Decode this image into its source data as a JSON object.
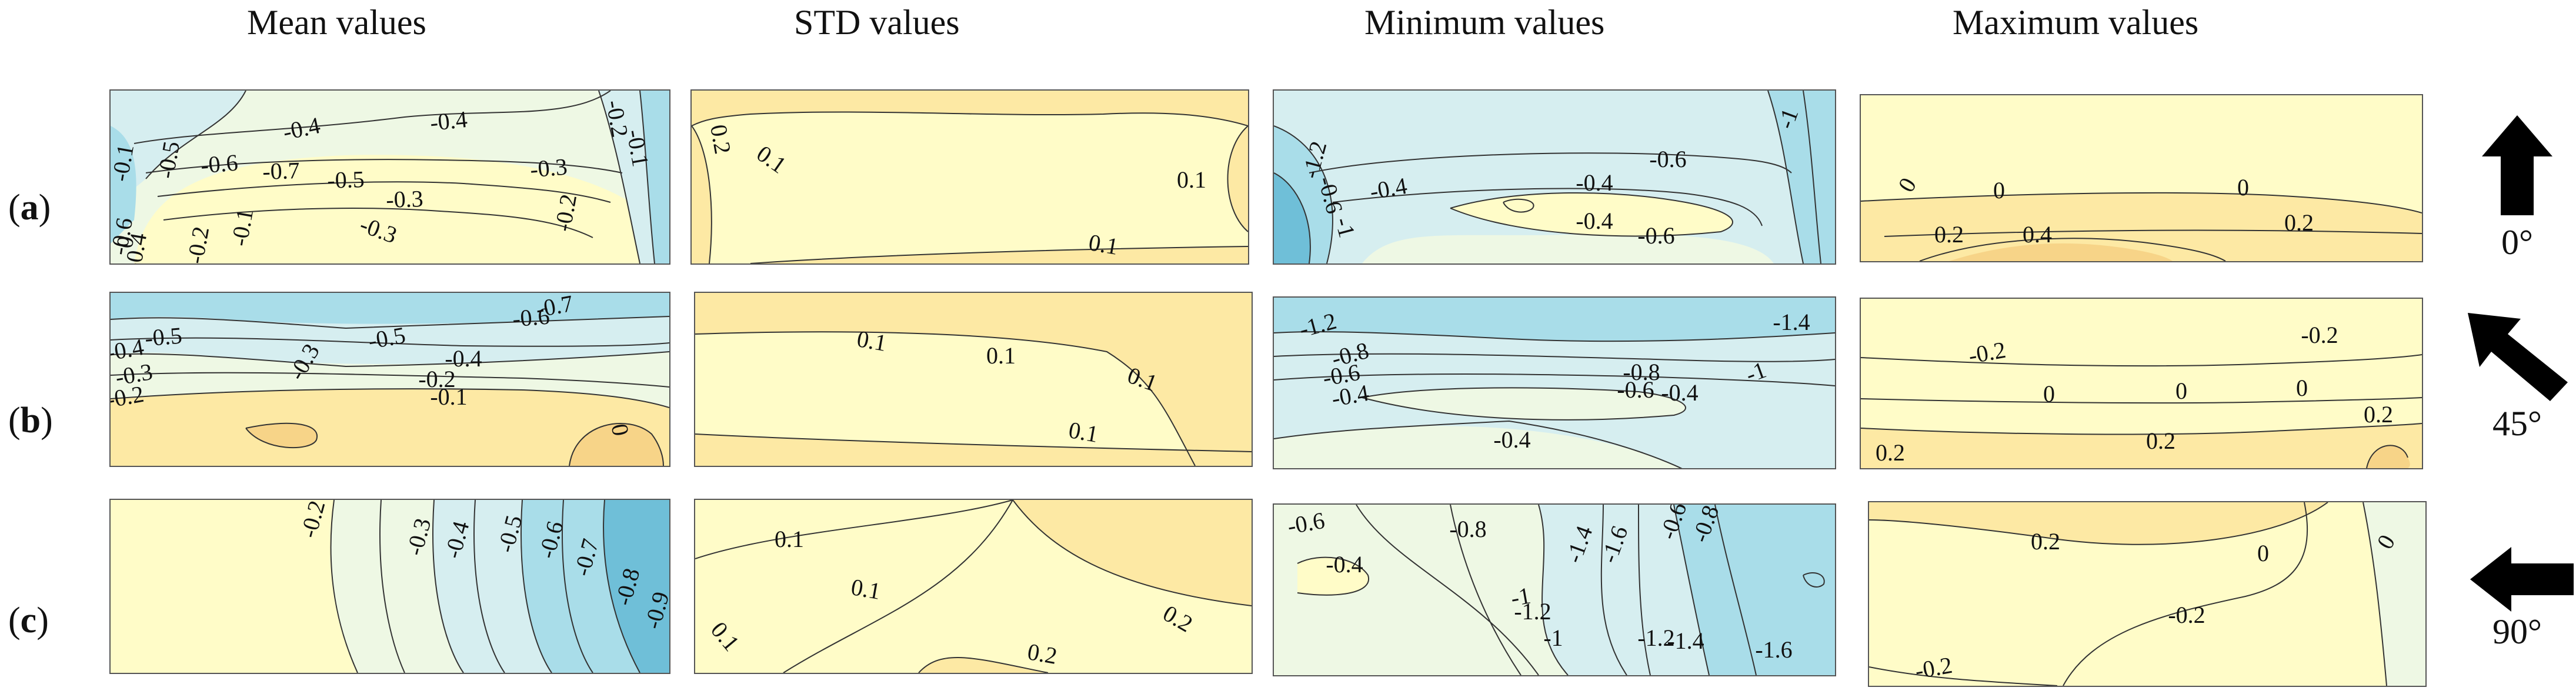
{
  "columns": [
    "Mean values",
    "STD values",
    "Minimum values",
    "Maximum values"
  ],
  "rows": [
    {
      "id": "a",
      "angle": "0°"
    },
    {
      "id": "b",
      "angle": "45°"
    },
    {
      "id": "c",
      "angle": "90°"
    }
  ],
  "colors": {
    "deep_blue": "#6fbfd8",
    "mid_blue": "#a9dde9",
    "light_blue": "#d6eef0",
    "pale_green": "#eef8e4",
    "pale_yellow": "#fffcc8",
    "light_orange": "#fde9a4",
    "orange": "#f7d488"
  },
  "chart_data": [
    {
      "type": "heatmap",
      "title": "Mean values",
      "row": "a",
      "contour_labels": [
        "-0.4",
        "-0.4",
        "-0.5",
        "-0.6",
        "-0.7",
        "-0.5",
        "-0.3",
        "-0.3",
        "-0.2",
        "-0.1",
        "-0.3",
        "-0.2",
        "-0.2",
        "-0.1",
        "-0.1",
        "0",
        "-0.6",
        "-0.4"
      ]
    },
    {
      "type": "heatmap",
      "title": "STD values",
      "row": "a",
      "contour_labels": [
        "0.2",
        "0.1",
        "0.1",
        "0.1"
      ]
    },
    {
      "type": "heatmap",
      "title": "Minimum values",
      "row": "a",
      "contour_labels": [
        "-1",
        "-0.4",
        "-0.6",
        "-0.4",
        "-0.4",
        "-0.6",
        "-1.2",
        "-0.6",
        "-1"
      ]
    },
    {
      "type": "heatmap",
      "title": "Maximum values",
      "row": "a",
      "contour_labels": [
        "0",
        "0",
        "0",
        "0.2",
        "0.2",
        "0.4"
      ]
    },
    {
      "type": "heatmap",
      "title": "Mean values",
      "row": "b",
      "contour_labels": [
        "-0.7",
        "-0.6",
        "-0.5",
        "-0.5",
        "-0.4",
        "-0.4",
        "-0.3",
        "-0.3",
        "-0.2",
        "-0.2",
        "-0.1",
        "0"
      ]
    },
    {
      "type": "heatmap",
      "title": "STD values",
      "row": "b",
      "contour_labels": [
        "0.1",
        "0.1",
        "0.1",
        "0.1"
      ]
    },
    {
      "type": "heatmap",
      "title": "Minimum values",
      "row": "b",
      "contour_labels": [
        "-1.2",
        "-0.8",
        "-0.6",
        "-0.4",
        "-0.8",
        "-0.6",
        "-0.4",
        "-1",
        "-1.4",
        "-0.4"
      ]
    },
    {
      "type": "heatmap",
      "title": "Maximum values",
      "row": "b",
      "contour_labels": [
        "-0.2",
        "-0.2",
        "0",
        "0",
        "0",
        "0.2",
        "0.2",
        "0.2"
      ]
    },
    {
      "type": "heatmap",
      "title": "Mean values",
      "row": "c",
      "contour_labels": [
        "-0.2",
        "-0.3",
        "-0.4",
        "-0.5",
        "-0.6",
        "-0.7",
        "-0.8",
        "-0.9"
      ]
    },
    {
      "type": "heatmap",
      "title": "STD values",
      "row": "c",
      "contour_labels": [
        "0.1",
        "0.1",
        "0.1",
        "0.2",
        "0.2"
      ]
    },
    {
      "type": "heatmap",
      "title": "Minimum values",
      "row": "c",
      "contour_labels": [
        "-0.6",
        "-0.4",
        "-0.8",
        "-1",
        "-1.2",
        "-1.4",
        "-1.6",
        "-0.6",
        "-0.8",
        "-1",
        "-1.2",
        "-1.4",
        "-1.6"
      ]
    },
    {
      "type": "heatmap",
      "title": "Maximum values",
      "row": "c",
      "contour_labels": [
        "0.2",
        "0",
        "-0.2",
        "0",
        "-0.2"
      ]
    }
  ]
}
